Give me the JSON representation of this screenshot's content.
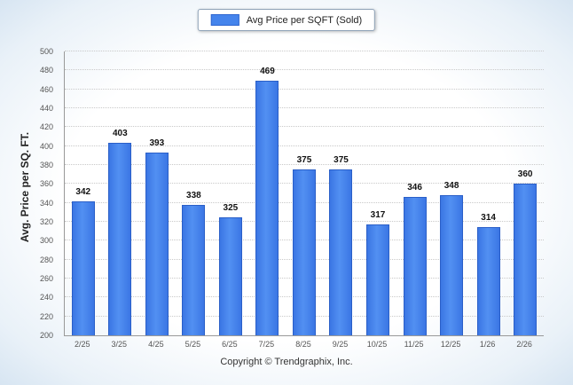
{
  "legend": {
    "label": "Avg Price per SQFT (Sold)"
  },
  "colors": {
    "bar": "#4584ec",
    "bar_border": "#2a5fc8"
  },
  "chart_data": {
    "type": "bar",
    "title": "",
    "legend": "Avg Price per SQFT (Sold)",
    "legend_position": "top-center",
    "categories": [
      "2/25",
      "3/25",
      "4/25",
      "5/25",
      "6/25",
      "7/25",
      "8/25",
      "9/25",
      "10/25",
      "11/25",
      "12/25",
      "1/26",
      "2/26"
    ],
    "values": [
      342,
      403,
      393,
      338,
      325,
      469,
      375,
      375,
      317,
      346,
      348,
      314,
      360
    ],
    "xlabel": "",
    "ylabel": "Avg. Price per SQ. FT.",
    "ylim": [
      200,
      500
    ],
    "ytick_step": 20,
    "grid": "horizontal-dotted"
  },
  "footer": {
    "copyright": "Copyright © Trendgraphix, Inc."
  }
}
